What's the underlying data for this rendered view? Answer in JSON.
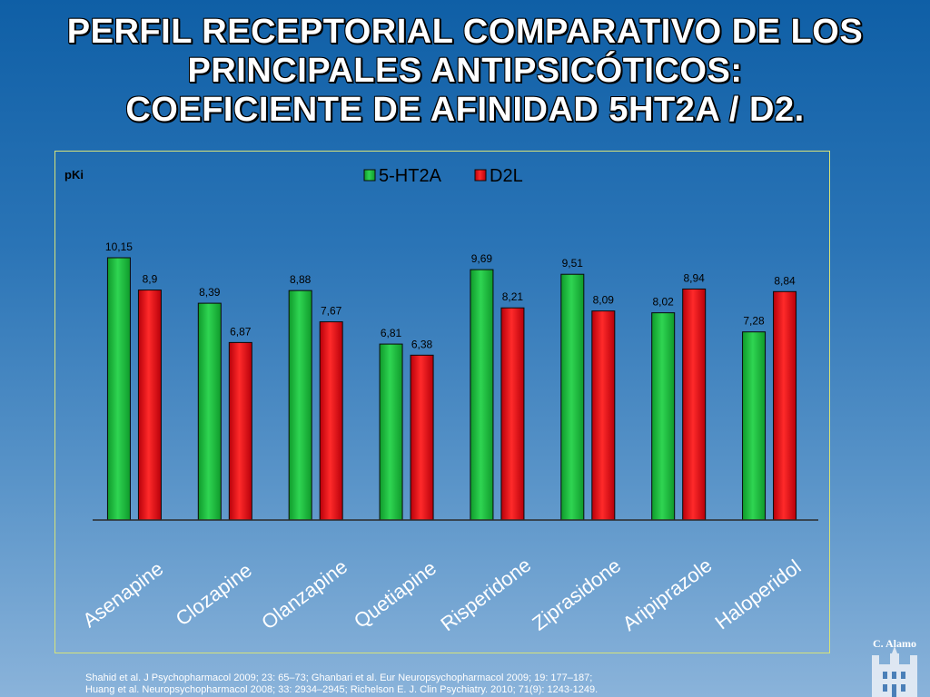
{
  "title_lines": [
    "PERFIL RECEPTORIAL COMPARATIVO DE LOS",
    "PRINCIPALES ANTIPSICÓTICOS:",
    "COEFICIENTE DE AFINIDAD 5HT2A / D2."
  ],
  "chart_data": {
    "type": "bar",
    "ylabel": "pKi",
    "ylim": [
      0,
      10.8
    ],
    "grid": false,
    "legend_position": "top",
    "categories": [
      "Asenapine",
      "Clozapine",
      "Olanzapine",
      "Quetiapine",
      "Risperidone",
      "Ziprasidone",
      "Aripiprazole",
      "Haloperidol"
    ],
    "series": [
      {
        "name": "5-HT2A",
        "color": "#1fbf3f",
        "values": [
          10.15,
          8.39,
          8.88,
          6.81,
          9.69,
          9.51,
          8.02,
          7.28
        ],
        "labels": [
          "10,15",
          "8,39",
          "8,88",
          "6,81",
          "9,69",
          "9,51",
          "8,02",
          "7,28"
        ]
      },
      {
        "name": "D2L",
        "color": "#e0141e",
        "values": [
          8.9,
          6.87,
          7.67,
          6.38,
          8.21,
          8.09,
          8.94,
          8.84
        ],
        "labels": [
          "8,9",
          "6,87",
          "7,67",
          "6,38",
          "8,21",
          "8,09",
          "8,94",
          "8,84"
        ]
      }
    ]
  },
  "references": [
    "Shahid et al. J Psychopharmacol 2009; 23: 65–73; Ghanbari et al. Eur Neuropsychopharmacol 2009; 19: 177–187;",
    "Huang et al. Neuropsychopharmacol 2008; 33: 2934–2945; Richelson E. J. Clin Psychiatry. 2010; 71(9): 1243-1249."
  ],
  "logo_text": "C. Alamo"
}
